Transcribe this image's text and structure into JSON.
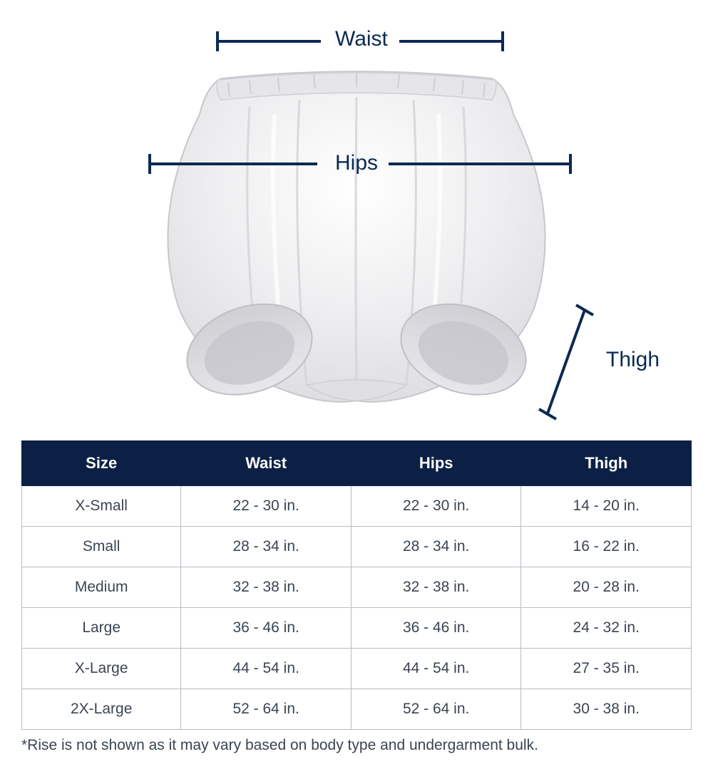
{
  "diagram": {
    "waist_label": "Waist",
    "hips_label": "Hips",
    "thigh_label": "Thigh",
    "label_color": "#0b2a52",
    "line_color": "#0b2a52",
    "garment_fill": "#f0f0f2",
    "garment_shadow": "#d8d8dc",
    "garment_highlight": "#ffffff"
  },
  "table": {
    "header_bg": "#0b2044",
    "header_fg": "#ffffff",
    "cell_fg": "#3a4553",
    "border_color": "#b8bdc4",
    "columns": [
      "Size",
      "Waist",
      "Hips",
      "Thigh"
    ],
    "rows": [
      [
        "X-Small",
        "22 - 30 in.",
        "22 - 30 in.",
        "14 - 20 in."
      ],
      [
        "Small",
        "28 - 34 in.",
        "28 - 34 in.",
        "16 - 22 in."
      ],
      [
        "Medium",
        "32 - 38 in.",
        "32 - 38 in.",
        "20 - 28 in."
      ],
      [
        "Large",
        "36 - 46 in.",
        "36 - 46 in.",
        "24 - 32 in."
      ],
      [
        "X-Large",
        "44 - 54 in.",
        "44 - 54 in.",
        "27 - 35 in."
      ],
      [
        "2X-Large",
        "52 - 64 in.",
        "52 - 64 in.",
        "30 - 38 in."
      ]
    ]
  },
  "footnote": "*Rise is not shown as it may vary based on body type and undergarment bulk."
}
